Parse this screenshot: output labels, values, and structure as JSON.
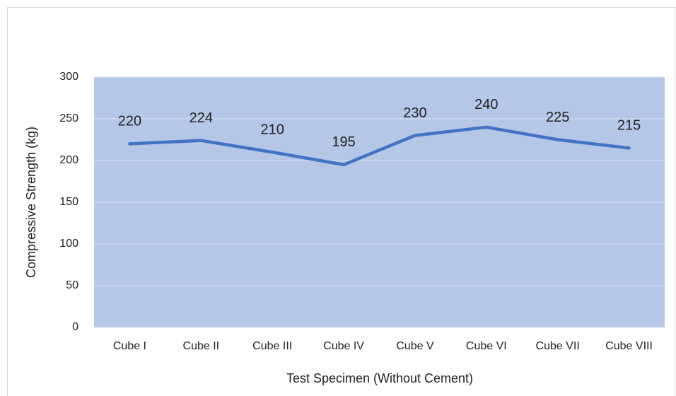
{
  "chart_data": {
    "type": "line",
    "x_label": "Test Specimen (Without Cement)",
    "y_label": "Compressive Strength (kg)",
    "categories": [
      "Cube I",
      "Cube II",
      "Cube III",
      "Cube IV",
      "Cube V",
      "Cube VI",
      "Cube VII",
      "Cube VIII"
    ],
    "values": [
      220,
      224,
      210,
      195,
      230,
      240,
      225,
      215
    ],
    "color": "#4472c4",
    "ylim": [
      0,
      300
    ],
    "yticks": [
      0,
      50,
      100,
      150,
      200,
      250,
      300
    ],
    "grid": true
  }
}
